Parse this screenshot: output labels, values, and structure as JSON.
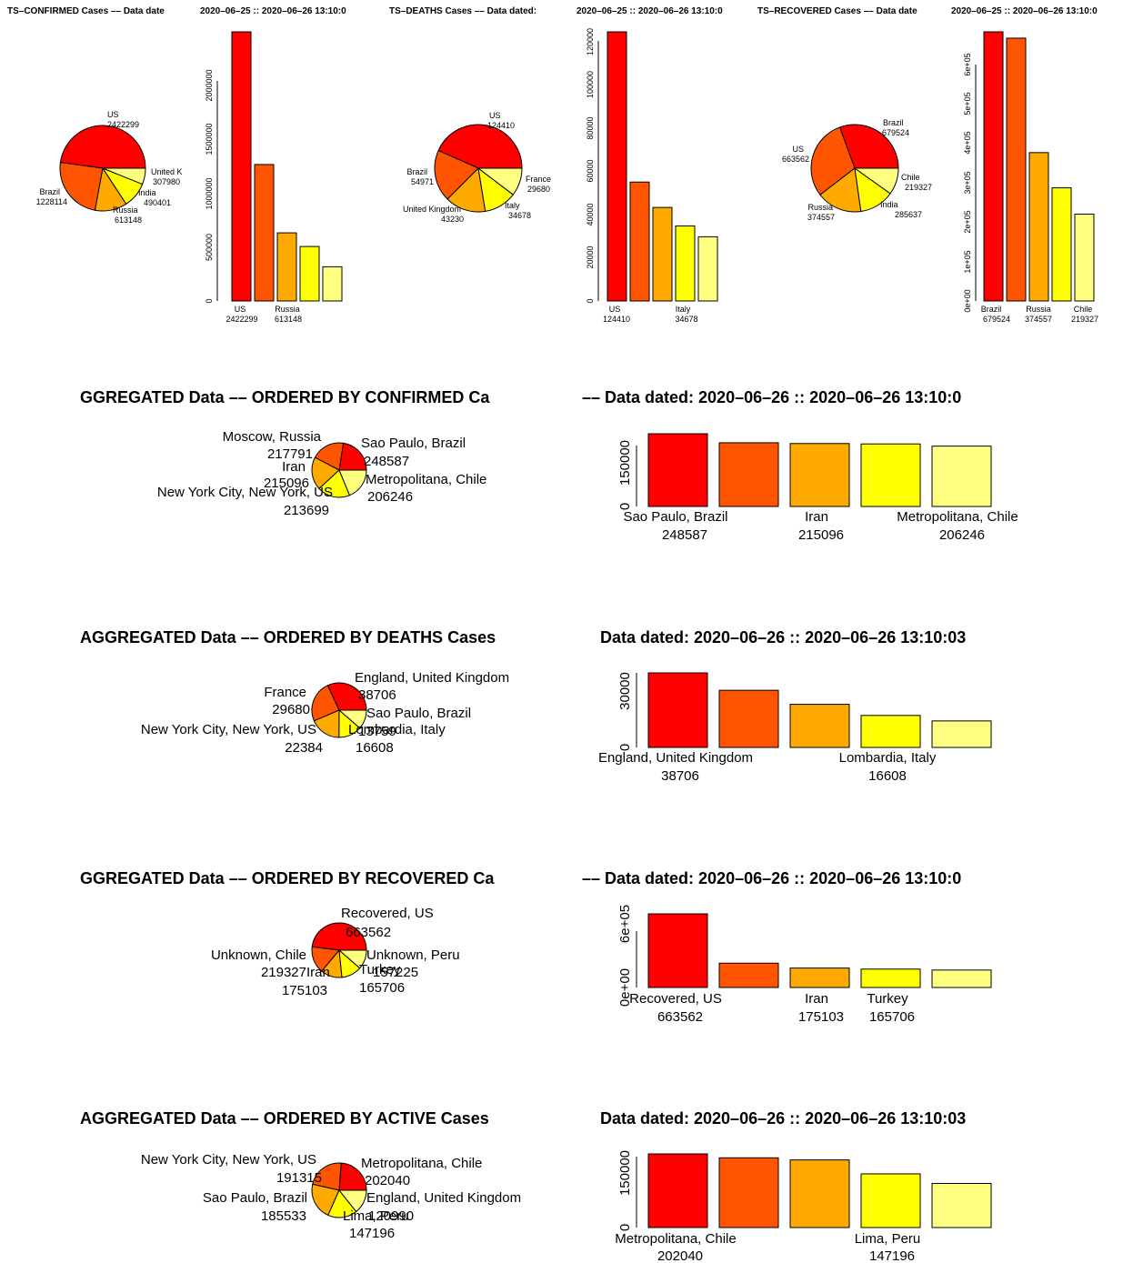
{
  "palette": [
    "#ff0000",
    "#ff5500",
    "#ffaa00",
    "#ffff00",
    "#ffff80"
  ],
  "top_panels": [
    {
      "left_title": "TS–CONFIRMED Cases  –– Data date",
      "right_title": "2020–06–25  ::  2020–06–26 13:10:0",
      "pie_labels": [
        [
          "US",
          "2422299"
        ],
        [
          "Brazil",
          "1228114"
        ],
        [
          "Russia",
          "613148"
        ],
        [
          "India",
          "490401"
        ],
        [
          "United K",
          "307980"
        ]
      ],
      "bar_labels": [
        [
          "US",
          "2422299"
        ],
        [
          "Russia",
          "613148"
        ]
      ],
      "y_ticks": [
        "0",
        "500000",
        "1000000",
        "1500000",
        "2000000"
      ]
    },
    {
      "left_title": "TS–DEATHS Cases  –– Data dated:",
      "right_title": "2020–06–25  ::  2020–06–26 13:10:0",
      "pie_labels": [
        [
          "US",
          "124410"
        ],
        [
          "Brazil",
          "54971"
        ],
        [
          "United Kingdom",
          "43230"
        ],
        [
          "Italy",
          "34678"
        ],
        [
          "France",
          "29680"
        ]
      ],
      "bar_labels": [
        [
          "US",
          "124410"
        ],
        [
          "Italy",
          "34678"
        ]
      ],
      "y_ticks": [
        "0",
        "20000",
        "40000",
        "60000",
        "80000",
        "100000",
        "120000"
      ]
    },
    {
      "left_title": "TS–RECOVERED Cases  –– Data date",
      "right_title": "2020–06–25  ::  2020–06–26 13:10:0",
      "pie_labels": [
        [
          "Brazil",
          "679524"
        ],
        [
          "US",
          "663562"
        ],
        [
          "Russia",
          "374557"
        ],
        [
          "India",
          "285637"
        ],
        [
          "Chile",
          "219327"
        ]
      ],
      "bar_labels": [
        [
          "Brazil",
          "679524"
        ],
        [
          "Russia",
          "374557"
        ],
        [
          "Chile",
          "219327"
        ]
      ],
      "y_ticks": [
        "0e+00",
        "1e+05",
        "2e+05",
        "3e+05",
        "4e+05",
        "5e+05",
        "6e+05"
      ]
    }
  ],
  "agg_panels": [
    {
      "left_title": "GGREGATED Data  –– ORDERED BY  CONFIRMED Ca",
      "right_title": "–– Data dated:  2020–06–26  ::  2020–06–26 13:10:0",
      "pie_labels": [
        [
          "Sao Paulo, Brazil",
          "248587"
        ],
        [
          "Moscow, Russia",
          "217791"
        ],
        [
          "Iran",
          "215096"
        ],
        [
          "New York City, New York, US",
          "213699"
        ],
        [
          "Metropolitana, Chile",
          "206246"
        ]
      ],
      "bar_labels": [
        [
          "Sao Paulo, Brazil",
          "248587"
        ],
        [
          "Iran",
          "215096"
        ],
        [
          "Metropolitana, Chile",
          "206246"
        ]
      ],
      "y_ticks": [
        "0",
        "150000"
      ]
    },
    {
      "left_title": "AGGREGATED Data  –– ORDERED BY  DEATHS Cases",
      "right_title": "Data dated:  2020–06–26  ::  2020–06–26 13:10:03",
      "pie_labels": [
        [
          "England, United Kingdom",
          "38706"
        ],
        [
          "France",
          "29680"
        ],
        [
          "New York City, New York, US",
          "22384"
        ],
        [
          "Lombardia, Italy",
          "16608"
        ],
        [
          "Sao Paulo, Brazil",
          "13759"
        ]
      ],
      "bar_labels": [
        [
          "England, United Kingdom",
          "38706"
        ],
        [
          "Lombardia, Italy",
          "16608"
        ]
      ],
      "y_ticks": [
        "0",
        "30000"
      ]
    },
    {
      "left_title": "GGREGATED Data  –– ORDERED BY  RECOVERED Ca",
      "right_title": "–– Data dated:  2020–06–26  ::  2020–06–26 13:10:0",
      "pie_labels": [
        [
          "Recovered, US",
          "663562"
        ],
        [
          "Unknown, Chile",
          "219327"
        ],
        [
          "Iran",
          "175103"
        ],
        [
          "Turkey",
          "165706"
        ],
        [
          "Unknown, Peru",
          "157225"
        ]
      ],
      "bar_labels": [
        [
          "Recovered, US",
          "663562"
        ],
        [
          "Iran",
          "175103"
        ],
        [
          "Turkey",
          "165706"
        ]
      ],
      "y_ticks": [
        "0e+00",
        "6e+05"
      ]
    },
    {
      "left_title": "AGGREGATED Data  –– ORDERED BY  ACTIVE Cases",
      "right_title": "Data dated:  2020–06–26  ::  2020–06–26 13:10:03",
      "pie_labels": [
        [
          "Metropolitana, Chile",
          "202040"
        ],
        [
          "New York City, New York, US",
          "191315"
        ],
        [
          "Sao Paulo, Brazil",
          "185533"
        ],
        [
          "Lima, Peru",
          "147196"
        ],
        [
          "England, United Kingdom",
          "120990"
        ]
      ],
      "bar_labels": [
        [
          "Metropolitana, Chile",
          "202040"
        ],
        [
          "Lima, Peru",
          "147196"
        ]
      ],
      "y_ticks": [
        "0",
        "150000"
      ]
    }
  ],
  "chart_data": [
    {
      "type": "pie",
      "categories": [
        "US",
        "Brazil",
        "Russia",
        "India",
        "United Kingdom"
      ],
      "values": [
        2422299,
        1228114,
        613148,
        490401,
        307980
      ]
    },
    {
      "type": "bar",
      "categories": [
        "US",
        "Brazil",
        "Russia",
        "India",
        "United Kingdom"
      ],
      "values": [
        2422299,
        1228114,
        613148,
        490401,
        307980
      ],
      "ylim": [
        0,
        2500000
      ]
    },
    {
      "type": "pie",
      "categories": [
        "US",
        "Brazil",
        "United Kingdom",
        "Italy",
        "France"
      ],
      "values": [
        124410,
        54971,
        43230,
        34678,
        29680
      ]
    },
    {
      "type": "bar",
      "categories": [
        "US",
        "Brazil",
        "United Kingdom",
        "Italy",
        "France"
      ],
      "values": [
        124410,
        54971,
        43230,
        34678,
        29680
      ],
      "ylim": [
        0,
        130000
      ]
    },
    {
      "type": "pie",
      "categories": [
        "Brazil",
        "US",
        "Russia",
        "India",
        "Chile"
      ],
      "values": [
        679524,
        663562,
        374557,
        285637,
        219327
      ]
    },
    {
      "type": "bar",
      "categories": [
        "Brazil",
        "US",
        "Russia",
        "India",
        "Chile"
      ],
      "values": [
        679524,
        663562,
        374557,
        285637,
        219327
      ],
      "ylim": [
        0,
        700000
      ]
    },
    {
      "type": "pie",
      "categories": [
        "Sao Paulo, Brazil",
        "Moscow, Russia",
        "Iran",
        "New York City, New York, US",
        "Metropolitana, Chile"
      ],
      "values": [
        248587,
        217791,
        215096,
        213699,
        206246
      ]
    },
    {
      "type": "bar",
      "categories": [
        "Sao Paulo, Brazil",
        "Moscow, Russia",
        "Iran",
        "New York City, New York, US",
        "Metropolitana, Chile"
      ],
      "values": [
        248587,
        217791,
        215096,
        213699,
        206246
      ],
      "ylim": [
        0,
        250000
      ]
    },
    {
      "type": "pie",
      "categories": [
        "England, United Kingdom",
        "France",
        "New York City, New York, US",
        "Lombardia, Italy",
        "Sao Paulo, Brazil"
      ],
      "values": [
        38706,
        29680,
        22384,
        16608,
        13759
      ]
    },
    {
      "type": "bar",
      "categories": [
        "England, United Kingdom",
        "France",
        "New York City, New York, US",
        "Lombardia, Italy",
        "Sao Paulo, Brazil"
      ],
      "values": [
        38706,
        29680,
        22384,
        16608,
        13759
      ],
      "ylim": [
        0,
        40000
      ]
    },
    {
      "type": "pie",
      "categories": [
        "Recovered, US",
        "Unknown, Chile",
        "Iran",
        "Turkey",
        "Unknown, Peru"
      ],
      "values": [
        663562,
        219327,
        175103,
        165706,
        157225
      ]
    },
    {
      "type": "bar",
      "categories": [
        "Recovered, US",
        "Unknown, Chile",
        "Iran",
        "Turkey",
        "Unknown, Peru"
      ],
      "values": [
        663562,
        219327,
        175103,
        165706,
        157225
      ],
      "ylim": [
        0,
        680000
      ]
    },
    {
      "type": "pie",
      "categories": [
        "Metropolitana, Chile",
        "New York City, New York, US",
        "Sao Paulo, Brazil",
        "Lima, Peru",
        "England, United Kingdom"
      ],
      "values": [
        202040,
        191315,
        185533,
        147196,
        120990
      ]
    },
    {
      "type": "bar",
      "categories": [
        "Metropolitana, Chile",
        "New York City, New York, US",
        "Sao Paulo, Brazil",
        "Lima, Peru",
        "England, United Kingdom"
      ],
      "values": [
        202040,
        191315,
        185533,
        147196,
        120990
      ],
      "ylim": [
        0,
        210000
      ]
    }
  ]
}
